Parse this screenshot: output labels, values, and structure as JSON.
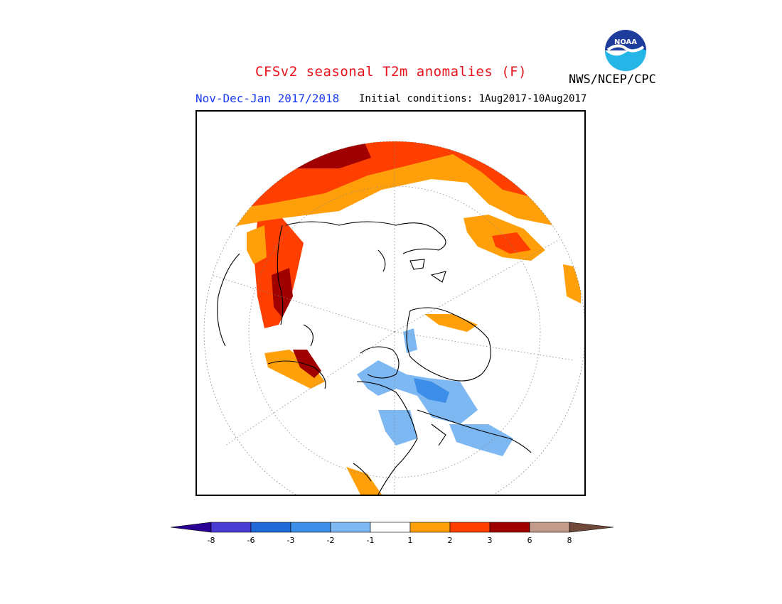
{
  "header": {
    "title": "CFSv2 seasonal T2m anomalies (F)",
    "period": "Nov-Dec-Jan 2017/2018",
    "initial_conditions": "Initial conditions: 1Aug2017-10Aug2017",
    "organization": "NWS/NCEP/CPC",
    "logo_text": "NOAA"
  },
  "map": {
    "projection": "north-polar-stereographic",
    "region": "Northern Hemisphere"
  },
  "legend": {
    "ticks": [
      "-8",
      "-6",
      "-3",
      "-2",
      "-1",
      "1",
      "2",
      "3",
      "6",
      "8"
    ],
    "colors": [
      "#2a0095",
      "#4a3cd4",
      "#1f6ad6",
      "#3d8ee8",
      "#7eb8f2",
      "#ffffff",
      "#ffa00a",
      "#ff3f00",
      "#a00000",
      "#c39b8a",
      "#70483a"
    ]
  }
}
